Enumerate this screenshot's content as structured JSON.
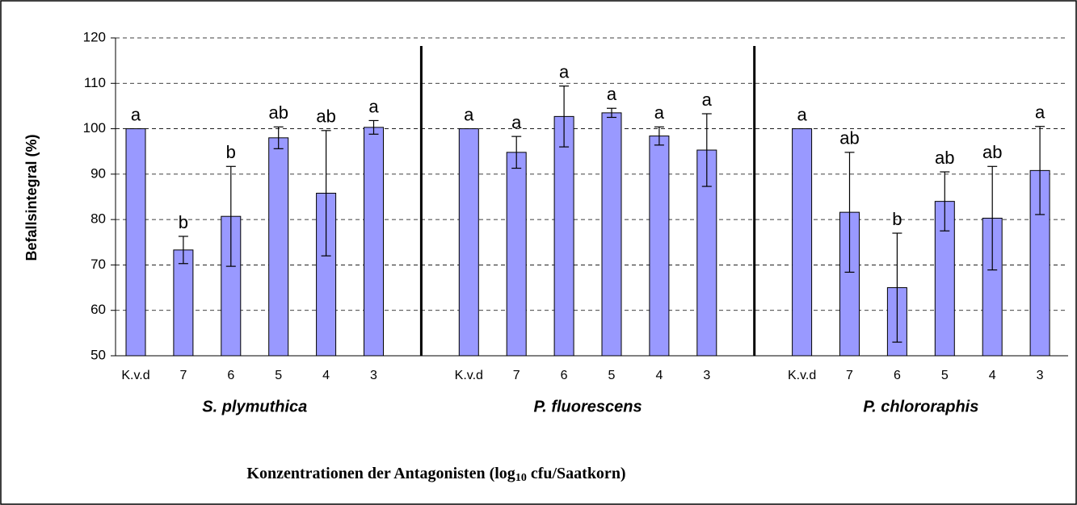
{
  "chart_data": {
    "type": "bar",
    "ylabel": "Befallsintegral (%)",
    "xlabel": {
      "parts": [
        "Konzentrationen der Antagonisten (log",
        "10",
        " cfu/Saatkorn)"
      ]
    },
    "groups": [
      "S. plymuthica",
      "P. fluorescens",
      "P. chlororaphis"
    ],
    "categories": [
      "K.v.d",
      "7",
      "6",
      "5",
      "4",
      "3",
      "K.v.d",
      "7",
      "6",
      "5",
      "4",
      "3",
      "K.v.d",
      "7",
      "6",
      "5",
      "4",
      "3"
    ],
    "values": [
      100,
      73.3,
      80.7,
      98,
      85.8,
      100.3,
      100,
      94.8,
      102.7,
      103.5,
      98.4,
      95.3,
      100,
      81.6,
      65,
      84,
      80.3,
      90.8
    ],
    "errors": [
      null,
      3,
      11,
      2.4,
      13.8,
      1.5,
      null,
      3.5,
      6.7,
      1,
      2,
      8,
      null,
      13.2,
      12,
      6.5,
      11.4,
      9.7
    ],
    "annotations": [
      "a",
      "b",
      "b",
      "ab",
      "ab",
      "a",
      "a",
      "a",
      "a",
      "a",
      "a",
      "a",
      "a",
      "ab",
      "b",
      "ab",
      "ab",
      "a"
    ],
    "color": "#9999ff",
    "ylim": [
      50,
      120
    ],
    "yticks": [
      50,
      60,
      70,
      80,
      90,
      100,
      110,
      120
    ],
    "grid": true
  }
}
